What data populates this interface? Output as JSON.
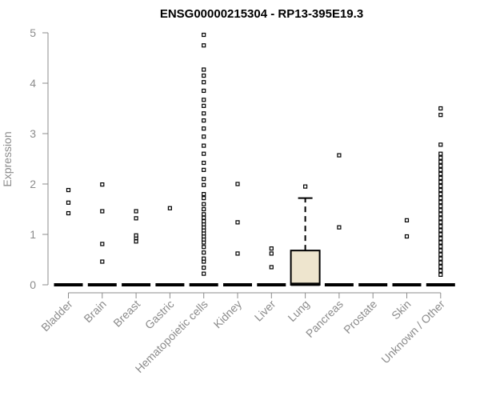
{
  "chart_data": {
    "type": "box",
    "title": "ENSG00000215304 - RP13-395E19.3",
    "xlabel": "",
    "ylabel": "Expression",
    "ylim": [
      0,
      5
    ],
    "yticks": [
      0,
      1,
      2,
      3,
      4,
      5
    ],
    "grid": false,
    "legend": "none",
    "colors": {
      "highlight_box": "#EEE5CE",
      "axis": "#8c8c8c",
      "points": "#000000"
    },
    "categories": [
      "Bladder",
      "Brain",
      "Breast",
      "Gastric",
      "Hematopoietic cells",
      "Kidney",
      "Liver",
      "Lung",
      "Pancreas",
      "Prostate",
      "Skin",
      "Unknown / Other"
    ],
    "boxes": [
      {
        "category": "Bladder",
        "q1": 0,
        "median": 0,
        "q3": 0,
        "whisker_low": 0,
        "whisker_high": 0,
        "outliers": [
          1.42,
          1.63,
          1.88
        ]
      },
      {
        "category": "Brain",
        "q1": 0,
        "median": 0,
        "q3": 0,
        "whisker_low": 0,
        "whisker_high": 0,
        "outliers": [
          0.46,
          0.81,
          1.46,
          1.99
        ]
      },
      {
        "category": "Breast",
        "q1": 0,
        "median": 0,
        "q3": 0,
        "whisker_low": 0,
        "whisker_high": 0,
        "outliers": [
          0.86,
          0.93,
          0.98,
          1.32,
          1.46
        ]
      },
      {
        "category": "Gastric",
        "q1": 0,
        "median": 0,
        "q3": 0,
        "whisker_low": 0,
        "whisker_high": 0,
        "outliers": [
          1.52
        ]
      },
      {
        "category": "Hematopoietic cells",
        "q1": 0,
        "median": 0,
        "q3": 0,
        "whisker_low": 0,
        "whisker_high": 0,
        "outliers": [
          0.22,
          0.34,
          0.46,
          0.52,
          0.64,
          0.75,
          0.84,
          0.9,
          0.96,
          1.02,
          1.08,
          1.14,
          1.2,
          1.26,
          1.33,
          1.4,
          1.5,
          1.6,
          1.72,
          1.8,
          1.98,
          2.1,
          2.28,
          2.42,
          2.6,
          2.76,
          2.94,
          3.1,
          3.26,
          3.4,
          3.55,
          3.67,
          3.85,
          4.02,
          4.15,
          4.27,
          4.75,
          4.96
        ]
      },
      {
        "category": "Kidney",
        "q1": 0,
        "median": 0,
        "q3": 0,
        "whisker_low": 0,
        "whisker_high": 0,
        "outliers": [
          0.62,
          1.24,
          2.0
        ]
      },
      {
        "category": "Liver",
        "q1": 0,
        "median": 0,
        "q3": 0,
        "whisker_low": 0,
        "whisker_high": 0,
        "outliers": [
          0.35,
          0.62,
          0.72
        ]
      },
      {
        "category": "Lung",
        "q1": 0,
        "median": 0.01,
        "q3": 0.68,
        "whisker_low": 0,
        "whisker_high": 1.72,
        "outliers": [
          1.95
        ]
      },
      {
        "category": "Pancreas",
        "q1": 0,
        "median": 0,
        "q3": 0,
        "whisker_low": 0,
        "whisker_high": 0,
        "outliers": [
          1.14,
          2.57
        ]
      },
      {
        "category": "Prostate",
        "q1": 0,
        "median": 0,
        "q3": 0,
        "whisker_low": 0,
        "whisker_high": 0,
        "outliers": []
      },
      {
        "category": "Skin",
        "q1": 0,
        "median": 0,
        "q3": 0,
        "whisker_low": 0,
        "whisker_high": 0,
        "outliers": [
          0.96,
          1.28
        ]
      },
      {
        "category": "Unknown / Other",
        "q1": 0,
        "median": 0,
        "q3": 0,
        "whisker_low": 0,
        "whisker_high": 0,
        "outliers": [
          0.2,
          0.28,
          0.36,
          0.44,
          0.52,
          0.6,
          0.68,
          0.76,
          0.84,
          0.92,
          1.0,
          1.08,
          1.16,
          1.24,
          1.32,
          1.4,
          1.48,
          1.56,
          1.64,
          1.72,
          1.8,
          1.88,
          1.96,
          2.04,
          2.12,
          2.2,
          2.28,
          2.36,
          2.44,
          2.52,
          2.6,
          2.78,
          3.37,
          3.5
        ]
      }
    ]
  }
}
